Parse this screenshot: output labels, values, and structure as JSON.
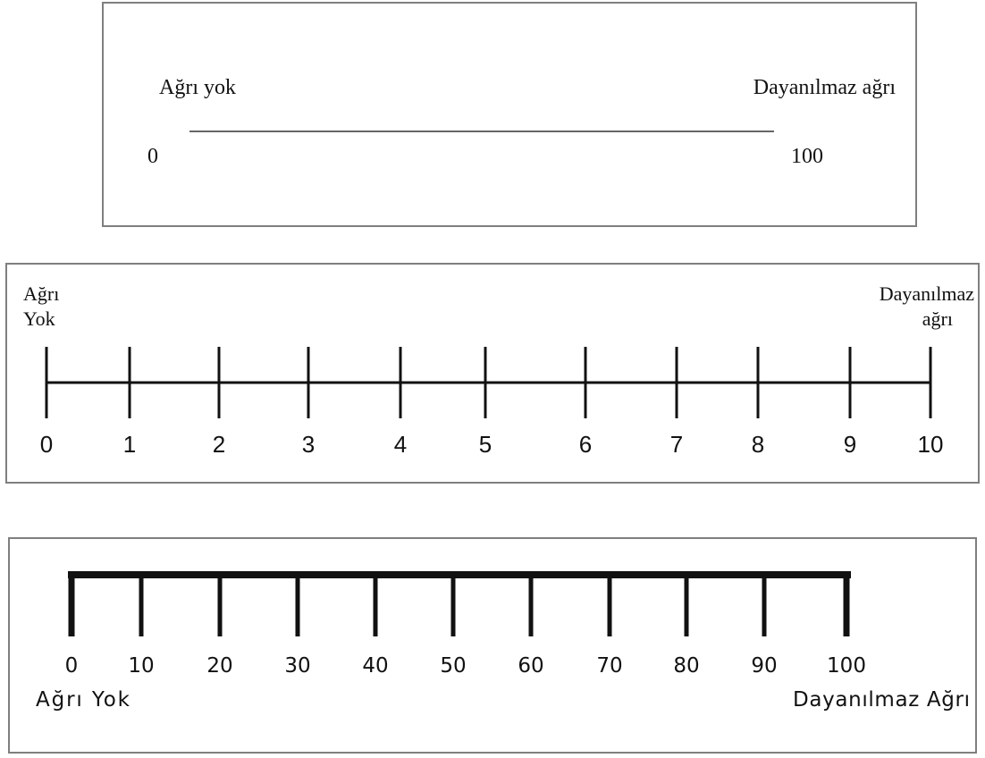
{
  "vas": {
    "left_label": "Ağrı yok",
    "right_label": "Dayanılmaz ağrı",
    "min_label": "0",
    "max_label": "100"
  },
  "nrs": {
    "left_label": [
      "Ağrı",
      "Yok"
    ],
    "right_label": [
      "Dayanılmaz",
      "ağrı"
    ],
    "ticks": [
      "0",
      "1",
      "2",
      "3",
      "4",
      "5",
      "6",
      "7",
      "8",
      "9",
      "10"
    ]
  },
  "scale100": {
    "ticks": [
      "0",
      "10",
      "20",
      "30",
      "40",
      "50",
      "60",
      "70",
      "80",
      "90",
      "100"
    ],
    "left_label": "Ağrı Yok",
    "right_label": "Dayanılmaz Ağrı"
  }
}
